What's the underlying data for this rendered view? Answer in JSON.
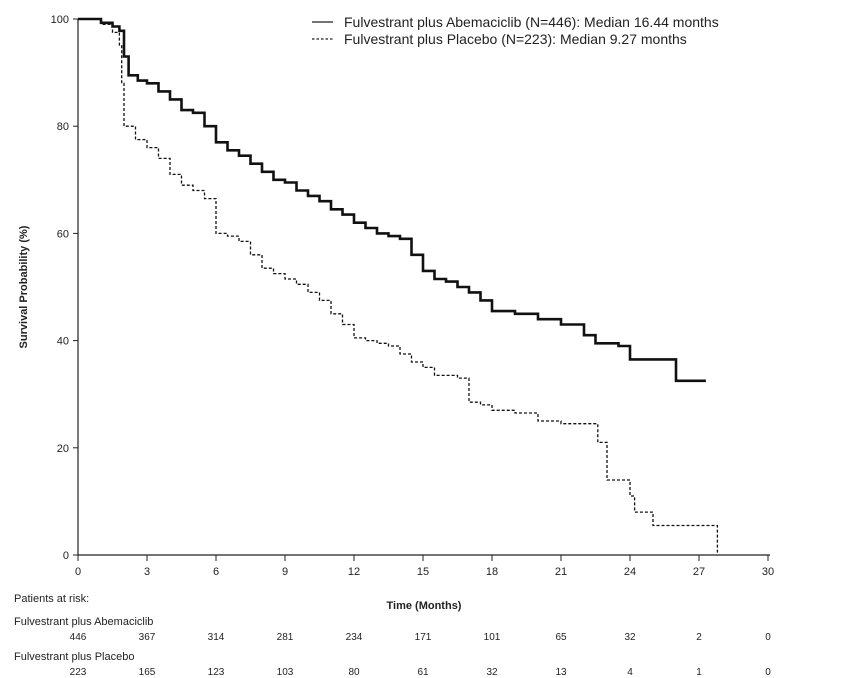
{
  "chart_data": {
    "type": "line",
    "title": "",
    "xlabel": "Time (Months)",
    "ylabel": "Survival Probability (%)",
    "xlim": [
      0,
      30
    ],
    "ylim": [
      0,
      100
    ],
    "x_ticks": [
      0,
      3,
      6,
      9,
      12,
      15,
      18,
      21,
      24,
      27,
      30
    ],
    "y_ticks": [
      0,
      20,
      40,
      60,
      80,
      100
    ],
    "grid": false,
    "legend_position": "top-right",
    "legend": [
      "Fulvestrant plus Abemaciclib (N=446): Median 16.44 months",
      "Fulvestrant plus Placebo (N=223): Median 9.27 months"
    ],
    "series": [
      {
        "name": "Fulvestrant plus Abemaciclib",
        "style": "solid",
        "color": "#111111",
        "points": [
          [
            0,
            100
          ],
          [
            0.5,
            100
          ],
          [
            1.0,
            99.3
          ],
          [
            1.5,
            98.6
          ],
          [
            1.8,
            97.8
          ],
          [
            2.0,
            93
          ],
          [
            2.2,
            89.5
          ],
          [
            2.6,
            88.5
          ],
          [
            3.0,
            88
          ],
          [
            3.5,
            86.5
          ],
          [
            4.0,
            85
          ],
          [
            4.5,
            83
          ],
          [
            5.0,
            82.5
          ],
          [
            5.5,
            80
          ],
          [
            6.0,
            77
          ],
          [
            6.5,
            75.5
          ],
          [
            7.0,
            74.5
          ],
          [
            7.5,
            73
          ],
          [
            8.0,
            71.5
          ],
          [
            8.5,
            70
          ],
          [
            9.0,
            69.5
          ],
          [
            9.5,
            68
          ],
          [
            10.0,
            67
          ],
          [
            10.5,
            66
          ],
          [
            11.0,
            64.5
          ],
          [
            11.5,
            63.5
          ],
          [
            12.0,
            62
          ],
          [
            12.5,
            61
          ],
          [
            13.0,
            60
          ],
          [
            13.5,
            59.5
          ],
          [
            14.0,
            59
          ],
          [
            14.5,
            56
          ],
          [
            15.0,
            53
          ],
          [
            15.5,
            51.5
          ],
          [
            16.0,
            51
          ],
          [
            16.5,
            50
          ],
          [
            17.0,
            49
          ],
          [
            17.5,
            47.5
          ],
          [
            18.0,
            45.5
          ],
          [
            19.0,
            45
          ],
          [
            20.0,
            44
          ],
          [
            21.0,
            43
          ],
          [
            22.0,
            41
          ],
          [
            22.5,
            39.5
          ],
          [
            23.5,
            39
          ],
          [
            24.0,
            36.5
          ],
          [
            26.0,
            36.5
          ],
          [
            26.0,
            32.5
          ],
          [
            27.3,
            32.5
          ]
        ]
      },
      {
        "name": "Fulvestrant plus Placebo",
        "style": "dashed",
        "color": "#111111",
        "points": [
          [
            0,
            100
          ],
          [
            1.0,
            99
          ],
          [
            1.5,
            97.5
          ],
          [
            1.8,
            95
          ],
          [
            1.9,
            88
          ],
          [
            2.0,
            80
          ],
          [
            2.5,
            77.5
          ],
          [
            3.0,
            76
          ],
          [
            3.5,
            74
          ],
          [
            4.0,
            71
          ],
          [
            4.5,
            69
          ],
          [
            5.0,
            68
          ],
          [
            5.5,
            66.5
          ],
          [
            6.0,
            60
          ],
          [
            6.5,
            59.5
          ],
          [
            7.0,
            58.5
          ],
          [
            7.5,
            56
          ],
          [
            8.0,
            53.5
          ],
          [
            8.5,
            52.5
          ],
          [
            9.0,
            51.5
          ],
          [
            9.5,
            50.5
          ],
          [
            10.0,
            49
          ],
          [
            10.5,
            47.5
          ],
          [
            11.0,
            45
          ],
          [
            11.5,
            43
          ],
          [
            12.0,
            40.5
          ],
          [
            12.5,
            40
          ],
          [
            13.0,
            39.5
          ],
          [
            13.5,
            39
          ],
          [
            14.0,
            37.5
          ],
          [
            14.5,
            36
          ],
          [
            15.0,
            35
          ],
          [
            15.5,
            33.5
          ],
          [
            16.5,
            33
          ],
          [
            17.0,
            28.5
          ],
          [
            17.5,
            28
          ],
          [
            18.0,
            27
          ],
          [
            19.0,
            26.5
          ],
          [
            20.0,
            25
          ],
          [
            21.0,
            24.5
          ],
          [
            22.5,
            24.5
          ],
          [
            22.6,
            21
          ],
          [
            23.0,
            14
          ],
          [
            24.0,
            11
          ],
          [
            24.2,
            8
          ],
          [
            25.0,
            5.5
          ],
          [
            27.5,
            5.5
          ],
          [
            27.8,
            0
          ]
        ]
      }
    ],
    "at_risk": {
      "title": "Patients at risk:",
      "times": [
        "0",
        "3",
        "6",
        "9",
        "12",
        "15",
        "18",
        "21",
        "24",
        "27",
        "30"
      ],
      "rows": [
        {
          "label": "Fulvestrant plus Abemaciclib",
          "values": [
            "446",
            "367",
            "314",
            "281",
            "234",
            "171",
            "101",
            "65",
            "32",
            "2",
            "0"
          ]
        },
        {
          "label": "Fulvestrant plus Placebo",
          "values": [
            "223",
            "165",
            "123",
            "103",
            "80",
            "61",
            "32",
            "13",
            "4",
            "1",
            "0"
          ]
        }
      ]
    }
  }
}
